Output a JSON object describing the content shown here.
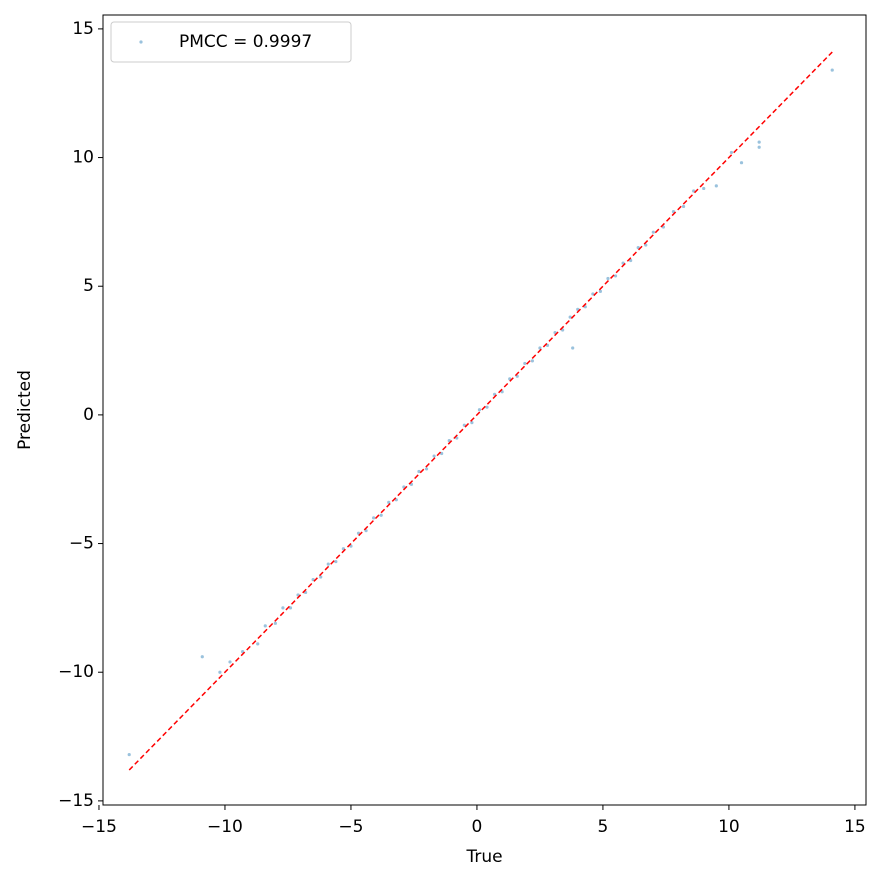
{
  "chart_data": {
    "type": "scatter",
    "xlabel": "True",
    "ylabel": "Predicted",
    "xlim": [
      -14.84,
      15.44
    ],
    "ylim": [
      -15.16,
      15.54
    ],
    "xticks": [
      {
        "value": -15,
        "label": "−15"
      },
      {
        "value": -10,
        "label": "−10"
      },
      {
        "value": -5,
        "label": "−5"
      },
      0,
      5,
      10,
      15
    ],
    "yticks": [
      {
        "value": -15,
        "label": "−15"
      },
      {
        "value": -10,
        "label": "−10"
      },
      {
        "value": -5,
        "label": "−5"
      },
      0,
      5,
      10,
      15
    ],
    "legend": "upper left",
    "reference_line": {
      "color": "#ff0000",
      "range": [
        -13.8,
        14.1
      ]
    },
    "series": [
      {
        "name": "PMCC = 0.9997",
        "color": "#1f77b4",
        "x": [
          -13.8,
          -10.9,
          -10.2,
          -9.8,
          -9.3,
          -8.7,
          -8.4,
          -8.0,
          -7.7,
          -7.4,
          -7.1,
          -6.8,
          -6.5,
          -6.2,
          -5.9,
          -5.6,
          -5.3,
          -5.0,
          -4.7,
          -4.4,
          -4.1,
          -3.8,
          -3.5,
          -3.2,
          -2.9,
          -2.6,
          -2.3,
          -2.0,
          -1.7,
          -1.4,
          -1.1,
          -0.8,
          -0.5,
          -0.2,
          0.1,
          0.4,
          0.7,
          1.0,
          1.3,
          1.6,
          1.9,
          2.2,
          2.5,
          2.8,
          3.1,
          3.4,
          3.7,
          3.8,
          4.0,
          4.3,
          4.6,
          4.9,
          5.2,
          5.5,
          5.8,
          6.1,
          6.4,
          6.7,
          7.0,
          7.4,
          7.8,
          8.2,
          8.6,
          9.0,
          9.5,
          10.1,
          10.5,
          11.2,
          11.2,
          14.1
        ],
        "y": [
          -13.2,
          -9.4,
          -10.0,
          -9.6,
          -9.2,
          -8.9,
          -8.2,
          -8.1,
          -7.5,
          -7.5,
          -7.0,
          -6.9,
          -6.4,
          -6.3,
          -5.8,
          -5.7,
          -5.2,
          -5.1,
          -4.6,
          -4.5,
          -4.0,
          -3.9,
          -3.4,
          -3.3,
          -2.8,
          -2.7,
          -2.2,
          -2.1,
          -1.6,
          -1.5,
          -1.0,
          -0.9,
          -0.4,
          -0.3,
          0.2,
          0.3,
          0.8,
          0.9,
          1.4,
          1.5,
          2.0,
          2.1,
          2.6,
          2.7,
          3.2,
          3.3,
          3.8,
          2.6,
          4.1,
          4.2,
          4.7,
          4.8,
          5.3,
          5.4,
          5.9,
          6.0,
          6.5,
          6.6,
          7.1,
          7.3,
          7.9,
          8.1,
          8.7,
          8.8,
          8.9,
          10.2,
          9.8,
          10.6,
          10.4,
          13.4
        ]
      }
    ]
  }
}
